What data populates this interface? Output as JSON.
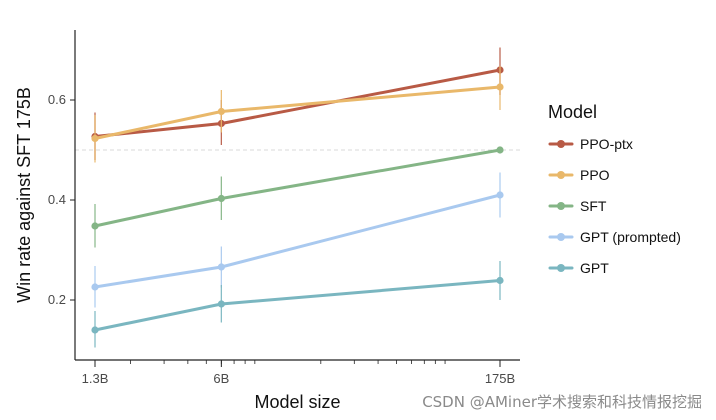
{
  "chart_data": {
    "type": "line",
    "xlabel": "Model size",
    "ylabel": "Win rate against SFT 175B",
    "x_scale": "log",
    "x_values_b": [
      1.3,
      6,
      175
    ],
    "x_tick_labels": [
      "1.3B",
      "6B",
      "175B"
    ],
    "y_ticks": [
      0.2,
      0.4,
      0.6
    ],
    "ylim": [
      0.08,
      0.74
    ],
    "reference_line": 0.5,
    "legend_title": "Model",
    "legend_position": "right",
    "series": [
      {
        "name": "PPO-ptx",
        "color": "#b85a45",
        "values": [
          0.527,
          0.553,
          0.66
        ],
        "err_low": [
          0.48,
          0.51,
          0.61
        ],
        "err_high": [
          0.575,
          0.6,
          0.705
        ]
      },
      {
        "name": "PPO",
        "color": "#e9b86a",
        "values": [
          0.523,
          0.577,
          0.626
        ],
        "err_low": [
          0.475,
          0.535,
          0.58
        ],
        "err_high": [
          0.57,
          0.62,
          0.668
        ]
      },
      {
        "name": "SFT",
        "color": "#84b586",
        "values": [
          0.348,
          0.403,
          0.5
        ],
        "err_low": [
          0.305,
          0.36,
          0.5
        ],
        "err_high": [
          0.392,
          0.447,
          0.5
        ]
      },
      {
        "name": "GPT (prompted)",
        "color": "#a9c9ef",
        "values": [
          0.226,
          0.266,
          0.41
        ],
        "err_low": [
          0.185,
          0.225,
          0.365
        ],
        "err_high": [
          0.268,
          0.307,
          0.455
        ]
      },
      {
        "name": "GPT",
        "color": "#7ab6c0",
        "values": [
          0.14,
          0.192,
          0.239
        ],
        "err_low": [
          0.105,
          0.155,
          0.2
        ],
        "err_high": [
          0.178,
          0.23,
          0.278
        ]
      }
    ]
  },
  "watermark": "CSDN @AMiner学术搜索和科技情报挖掘"
}
